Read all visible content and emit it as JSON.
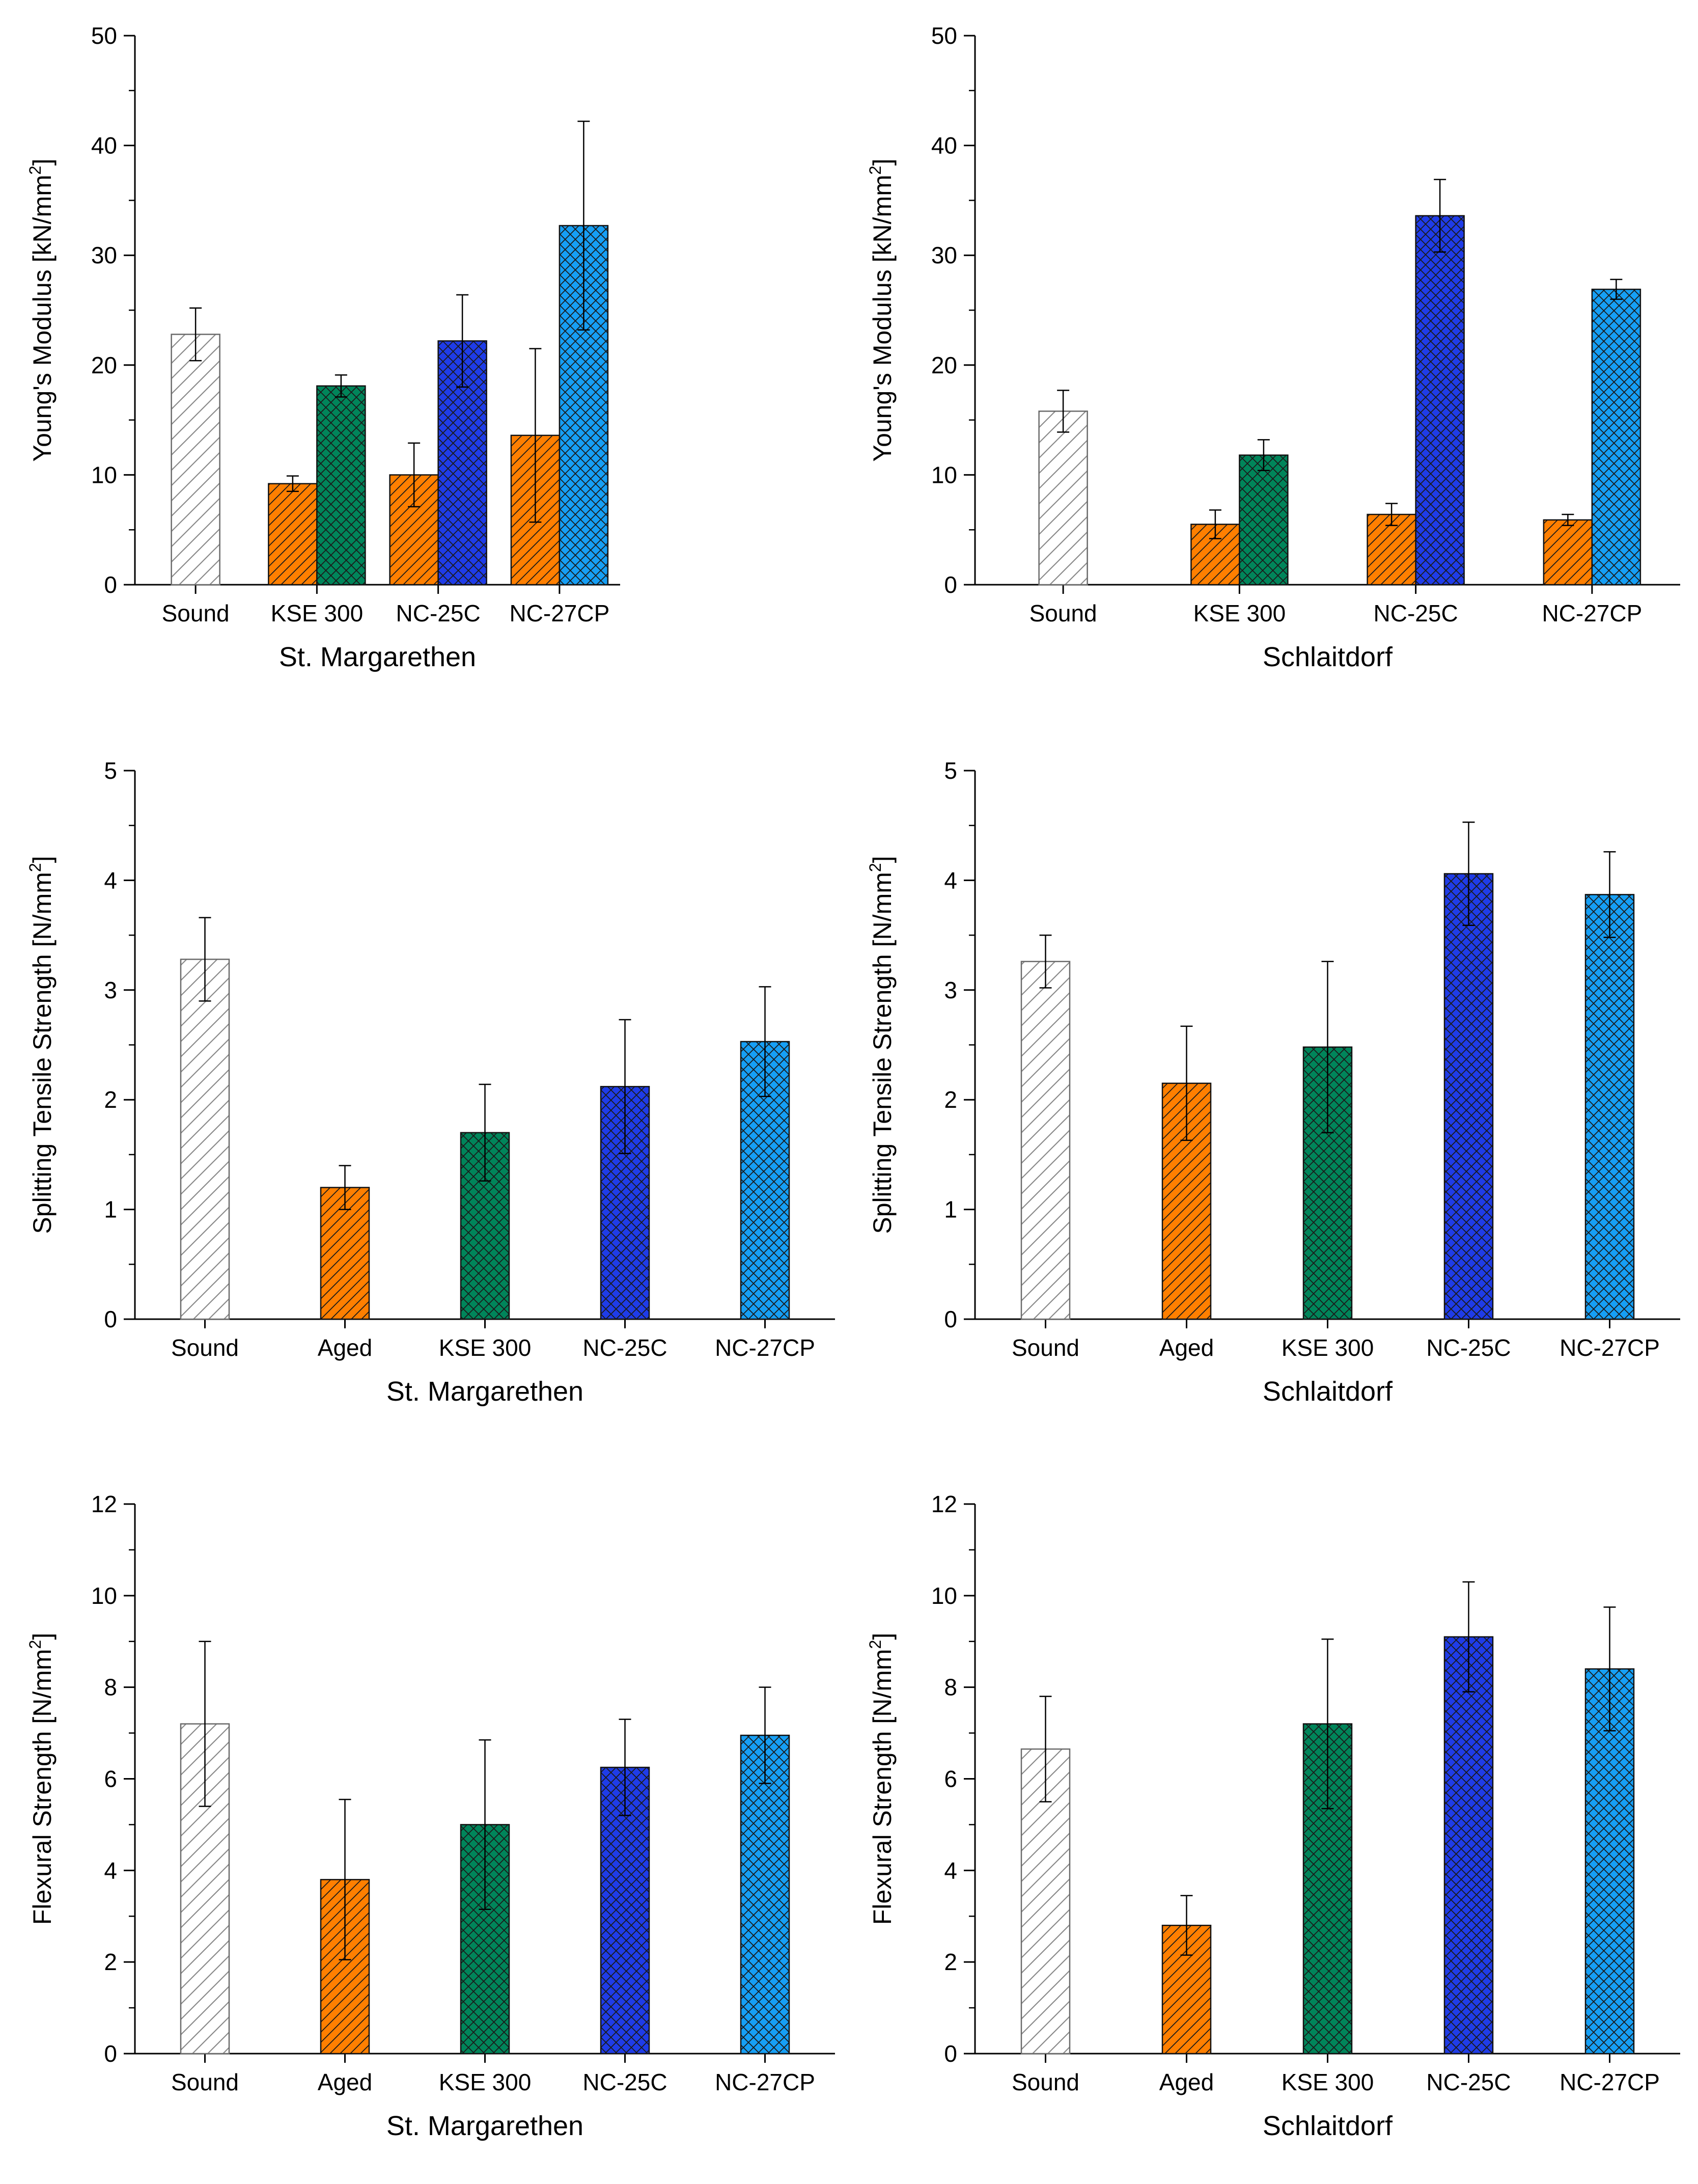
{
  "colors": {
    "sound": "#ffffff",
    "orange": "#ff7f00",
    "green": "#00855a",
    "blue": "#1f3ce8",
    "lightblue": "#169ff5",
    "hatch": "#1a1a1a",
    "sound_hatch": "#8a8a8a"
  },
  "chart_data": [
    {
      "type": "bar",
      "title": "",
      "ylabel": "Young's Modulus [kN/mm",
      "ylabel_sup": "2",
      "ylabel_end": "]",
      "xlabel": "St. Margarethen",
      "ylim": [
        0,
        50
      ],
      "yticks": [
        0,
        10,
        20,
        30,
        40,
        50
      ],
      "categories": [
        "Sound",
        "KSE 300",
        "NC-25C",
        "NC-27CP"
      ],
      "bars": [
        {
          "category": 0,
          "slot": "single",
          "fill": "sound",
          "hatch": "diag",
          "value": 22.8,
          "err": 2.4
        },
        {
          "category": 1,
          "slot": "left",
          "fill": "orange",
          "hatch": "diag",
          "value": 9.2,
          "err": 0.7
        },
        {
          "category": 1,
          "slot": "right",
          "fill": "green",
          "hatch": "cross",
          "value": 18.1,
          "err": 1.0
        },
        {
          "category": 2,
          "slot": "left",
          "fill": "orange",
          "hatch": "diag",
          "value": 10.0,
          "err": 2.9
        },
        {
          "category": 2,
          "slot": "right",
          "fill": "blue",
          "hatch": "cross",
          "value": 22.2,
          "err": 4.2
        },
        {
          "category": 3,
          "slot": "left",
          "fill": "orange",
          "hatch": "diag",
          "value": 13.6,
          "err": 7.9
        },
        {
          "category": 3,
          "slot": "right",
          "fill": "lightblue",
          "hatch": "cross",
          "value": 32.7,
          "err": 9.5
        }
      ]
    },
    {
      "type": "bar",
      "title": "",
      "ylabel": "Young's Modulus [kN/mm",
      "ylabel_sup": "2",
      "ylabel_end": "]",
      "xlabel": "Schlaitdorf",
      "ylim": [
        0,
        50
      ],
      "yticks": [
        0,
        10,
        20,
        30,
        40,
        50
      ],
      "categories": [
        "Sound",
        "KSE 300",
        "NC-25C",
        "NC-27CP"
      ],
      "bars": [
        {
          "category": 0,
          "slot": "single",
          "fill": "sound",
          "hatch": "diag",
          "value": 15.8,
          "err": 1.9
        },
        {
          "category": 1,
          "slot": "left",
          "fill": "orange",
          "hatch": "diag",
          "value": 5.5,
          "err": 1.3
        },
        {
          "category": 1,
          "slot": "right",
          "fill": "green",
          "hatch": "cross",
          "value": 11.8,
          "err": 1.4
        },
        {
          "category": 2,
          "slot": "left",
          "fill": "orange",
          "hatch": "diag",
          "value": 6.4,
          "err": 1.0
        },
        {
          "category": 2,
          "slot": "right",
          "fill": "blue",
          "hatch": "cross",
          "value": 33.6,
          "err": 3.3
        },
        {
          "category": 3,
          "slot": "left",
          "fill": "orange",
          "hatch": "diag",
          "value": 5.9,
          "err": 0.5
        },
        {
          "category": 3,
          "slot": "right",
          "fill": "lightblue",
          "hatch": "cross",
          "value": 26.9,
          "err": 0.9
        }
      ]
    },
    {
      "type": "bar",
      "title": "",
      "ylabel": "Splitting Tensile Strength [N/mm",
      "ylabel_sup": "2",
      "ylabel_end": "]",
      "xlabel": "St. Margarethen",
      "ylim": [
        0,
        5
      ],
      "yticks": [
        0,
        1,
        2,
        3,
        4,
        5
      ],
      "categories": [
        "Sound",
        "Aged",
        "KSE 300",
        "NC-25C",
        "NC-27CP"
      ],
      "bars": [
        {
          "category": 0,
          "slot": "single",
          "fill": "sound",
          "hatch": "diag",
          "value": 3.28,
          "err": 0.38
        },
        {
          "category": 1,
          "slot": "single",
          "fill": "orange",
          "hatch": "diag",
          "value": 1.2,
          "err": 0.2
        },
        {
          "category": 2,
          "slot": "single",
          "fill": "green",
          "hatch": "cross",
          "value": 1.7,
          "err": 0.44
        },
        {
          "category": 3,
          "slot": "single",
          "fill": "blue",
          "hatch": "cross",
          "value": 2.12,
          "err": 0.61
        },
        {
          "category": 4,
          "slot": "single",
          "fill": "lightblue",
          "hatch": "cross",
          "value": 2.53,
          "err": 0.5
        }
      ]
    },
    {
      "type": "bar",
      "title": "",
      "ylabel": "Splitting Tensile Strength [N/mm",
      "ylabel_sup": "2",
      "ylabel_end": "]",
      "xlabel": "Schlaitdorf",
      "ylim": [
        0,
        5
      ],
      "yticks": [
        0,
        1,
        2,
        3,
        4,
        5
      ],
      "categories": [
        "Sound",
        "Aged",
        "KSE 300",
        "NC-25C",
        "NC-27CP"
      ],
      "bars": [
        {
          "category": 0,
          "slot": "single",
          "fill": "sound",
          "hatch": "diag",
          "value": 3.26,
          "err": 0.24
        },
        {
          "category": 1,
          "slot": "single",
          "fill": "orange",
          "hatch": "diag",
          "value": 2.15,
          "err": 0.52
        },
        {
          "category": 2,
          "slot": "single",
          "fill": "green",
          "hatch": "cross",
          "value": 2.48,
          "err": 0.78
        },
        {
          "category": 3,
          "slot": "single",
          "fill": "blue",
          "hatch": "cross",
          "value": 4.06,
          "err": 0.47
        },
        {
          "category": 4,
          "slot": "single",
          "fill": "lightblue",
          "hatch": "cross",
          "value": 3.87,
          "err": 0.39
        }
      ]
    },
    {
      "type": "bar",
      "title": "",
      "ylabel": "Flexural Strength [N/mm",
      "ylabel_sup": "2",
      "ylabel_end": "]",
      "xlabel": "St. Margarethen",
      "ylim": [
        0,
        12
      ],
      "yticks": [
        0,
        2,
        4,
        6,
        8,
        10,
        12
      ],
      "categories": [
        "Sound",
        "Aged",
        "KSE 300",
        "NC-25C",
        "NC-27CP"
      ],
      "bars": [
        {
          "category": 0,
          "slot": "single",
          "fill": "sound",
          "hatch": "diag",
          "value": 7.2,
          "err": 1.8
        },
        {
          "category": 1,
          "slot": "single",
          "fill": "orange",
          "hatch": "diag",
          "value": 3.8,
          "err": 1.75
        },
        {
          "category": 2,
          "slot": "single",
          "fill": "green",
          "hatch": "cross",
          "value": 5.0,
          "err": 1.85
        },
        {
          "category": 3,
          "slot": "single",
          "fill": "blue",
          "hatch": "cross",
          "value": 6.25,
          "err": 1.05
        },
        {
          "category": 4,
          "slot": "single",
          "fill": "lightblue",
          "hatch": "cross",
          "value": 6.95,
          "err": 1.05
        }
      ]
    },
    {
      "type": "bar",
      "title": "",
      "ylabel": "Flexural Strength [N/mm",
      "ylabel_sup": "2",
      "ylabel_end": "]",
      "xlabel": "Schlaitdorf",
      "ylim": [
        0,
        12
      ],
      "yticks": [
        0,
        2,
        4,
        6,
        8,
        10,
        12
      ],
      "categories": [
        "Sound",
        "Aged",
        "KSE 300",
        "NC-25C",
        "NC-27CP"
      ],
      "bars": [
        {
          "category": 0,
          "slot": "single",
          "fill": "sound",
          "hatch": "diag",
          "value": 6.65,
          "err": 1.15
        },
        {
          "category": 1,
          "slot": "single",
          "fill": "orange",
          "hatch": "diag",
          "value": 2.8,
          "err": 0.65
        },
        {
          "category": 2,
          "slot": "single",
          "fill": "green",
          "hatch": "cross",
          "value": 7.2,
          "err": 1.85
        },
        {
          "category": 3,
          "slot": "single",
          "fill": "blue",
          "hatch": "cross",
          "value": 9.1,
          "err": 1.2
        },
        {
          "category": 4,
          "slot": "single",
          "fill": "lightblue",
          "hatch": "cross",
          "value": 8.4,
          "err": 1.35
        }
      ]
    }
  ]
}
